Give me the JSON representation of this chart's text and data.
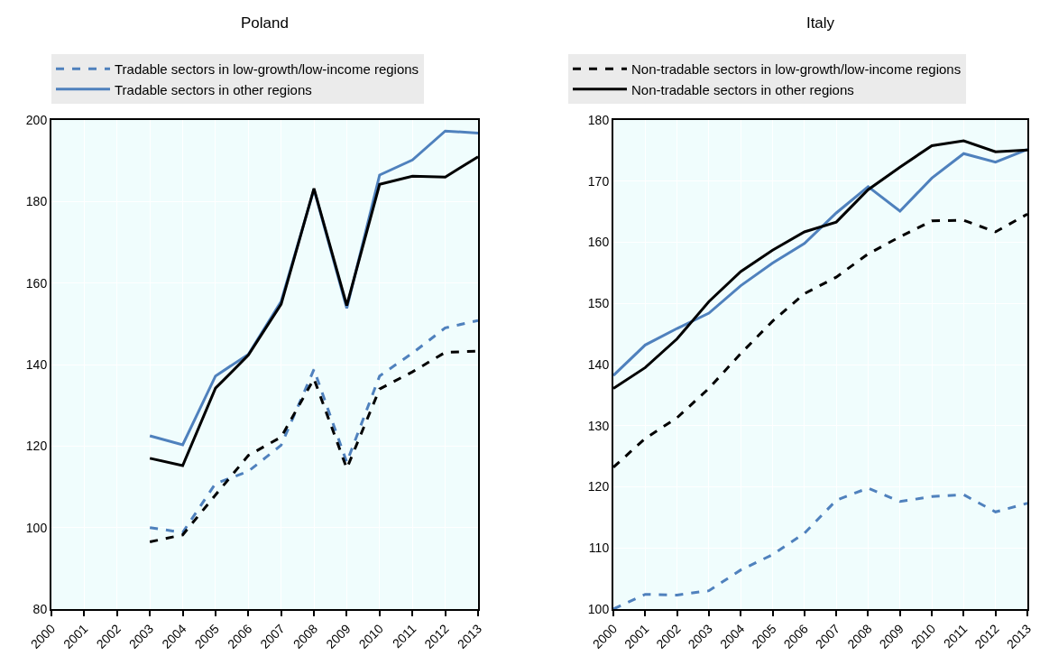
{
  "chart_data": [
    {
      "type": "line",
      "title": "Poland",
      "x": [
        2003,
        2004,
        2005,
        2006,
        2007,
        2008,
        2009,
        2010,
        2011,
        2012,
        2013
      ],
      "series": [
        {
          "name": "Tradable sectors in low-growth/low-income regions",
          "color": "#4f81bd",
          "line_style": "dashed",
          "values": [
            100,
            98.8,
            110.8,
            113.8,
            120.2,
            138.8,
            116,
            137.2,
            142.8,
            149,
            150.8
          ]
        },
        {
          "name": "Non-tradable sectors in low-growth/low-income regions",
          "color": "#000000",
          "line_style": "dashed",
          "values": [
            96.5,
            98.2,
            108,
            117.7,
            122.2,
            136.5,
            114.5,
            134,
            138.2,
            143,
            143.3
          ]
        },
        {
          "name": "Tradable sectors in other regions",
          "color": "#4f81bd",
          "line_style": "solid",
          "values": [
            122.5,
            120.3,
            137.2,
            142.5,
            155.5,
            183,
            153.8,
            186.5,
            190.2,
            197.3,
            196.8
          ]
        },
        {
          "name": "Non-tradable sectors in other regions",
          "color": "#000000",
          "line_style": "solid",
          "values": [
            117,
            115.2,
            134.2,
            142.3,
            154.8,
            183.2,
            154.5,
            184.2,
            186.2,
            186,
            191
          ]
        }
      ],
      "xlim": [
        2000,
        2013
      ],
      "xticks": [
        2000,
        2001,
        2002,
        2003,
        2004,
        2005,
        2006,
        2007,
        2008,
        2009,
        2010,
        2011,
        2012,
        2013
      ],
      "ylim": [
        80,
        200
      ],
      "yticks": [
        80,
        100,
        120,
        140,
        160,
        180,
        200
      ],
      "grid": true,
      "legend": "top",
      "marker": "none"
    },
    {
      "type": "line",
      "title": "Italy",
      "x": [
        2000,
        2001,
        2002,
        2003,
        2004,
        2005,
        2006,
        2007,
        2008,
        2009,
        2010,
        2011,
        2012,
        2013
      ],
      "series": [
        {
          "color": "#4f81bd",
          "line_style": "dashed",
          "values": [
            100,
            102.4,
            102.3,
            103,
            106.4,
            108.9,
            112.4,
            117.8,
            119.8,
            117.6,
            118.4,
            118.7,
            115.9,
            117.3
          ]
        },
        {
          "color": "#000000",
          "line_style": "dashed",
          "values": [
            123.2,
            127.9,
            131.3,
            136.1,
            141.8,
            147.1,
            151.6,
            154.3,
            158.1,
            160.9,
            163.5,
            163.6,
            161.7,
            164.6
          ]
        },
        {
          "color": "#4f81bd",
          "line_style": "solid",
          "values": [
            138.2,
            143.2,
            145.9,
            148.4,
            152.9,
            156.6,
            159.8,
            164.8,
            169.1,
            165.1,
            170.5,
            174.5,
            173.1,
            175.2
          ]
        },
        {
          "color": "#000000",
          "line_style": "solid",
          "values": [
            136.1,
            139.5,
            144.2,
            150.3,
            155.2,
            158.7,
            161.7,
            163.3,
            168.6,
            172.3,
            175.8,
            176.6,
            174.8,
            175.1
          ]
        }
      ],
      "xlim": [
        2000,
        2013
      ],
      "xticks": [
        2000,
        2001,
        2002,
        2003,
        2004,
        2005,
        2006,
        2007,
        2008,
        2009,
        2010,
        2011,
        2012,
        2013
      ],
      "ylim": [
        100,
        180
      ],
      "yticks": [
        100,
        110,
        120,
        130,
        140,
        150,
        160,
        170,
        180
      ],
      "grid": true,
      "marker": "none"
    }
  ]
}
